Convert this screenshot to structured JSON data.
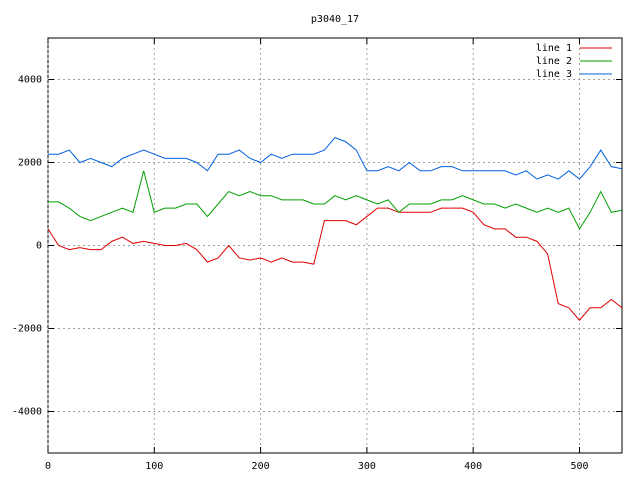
{
  "chart_data": {
    "type": "line",
    "title": "p3040_17",
    "x": [
      0,
      10,
      20,
      30,
      40,
      50,
      60,
      70,
      80,
      90,
      100,
      110,
      120,
      130,
      140,
      150,
      160,
      170,
      180,
      190,
      200,
      210,
      220,
      230,
      240,
      250,
      260,
      270,
      280,
      290,
      300,
      310,
      320,
      330,
      340,
      350,
      360,
      370,
      380,
      390,
      400,
      410,
      420,
      430,
      440,
      450,
      460,
      470,
      480,
      490,
      500,
      510,
      520,
      530,
      540
    ],
    "series": [
      {
        "name": "line 1",
        "color": "#e00000",
        "values": [
          400,
          0,
          -100,
          -50,
          -100,
          -100,
          100,
          200,
          50,
          100,
          50,
          0,
          0,
          50,
          -100,
          -400,
          -300,
          0,
          -300,
          -350,
          -300,
          -400,
          -300,
          -400,
          -400,
          -450,
          600,
          600,
          600,
          500,
          700,
          900,
          900,
          800,
          800,
          800,
          800,
          900,
          900,
          900,
          800,
          500,
          400,
          400,
          200,
          200,
          100,
          -200,
          -1400,
          -1500,
          -1800,
          -1500,
          -1500,
          -1300,
          -1500
        ]
      },
      {
        "name": "line 2",
        "color": "#00a000",
        "values": [
          1050,
          1050,
          900,
          700,
          600,
          700,
          800,
          900,
          800,
          1800,
          800,
          900,
          900,
          1000,
          1000,
          700,
          1000,
          1300,
          1200,
          1300,
          1200,
          1200,
          1100,
          1100,
          1100,
          1000,
          1000,
          1200,
          1100,
          1200,
          1100,
          1000,
          1100,
          800,
          1000,
          1000,
          1000,
          1100,
          1100,
          1200,
          1100,
          1000,
          1000,
          900,
          1000,
          900,
          800,
          900,
          800,
          900,
          400,
          800,
          1300,
          800,
          850
        ]
      },
      {
        "name": "line 3",
        "color": "#0060e0",
        "values": [
          2200,
          2200,
          2300,
          2000,
          2100,
          2000,
          1900,
          2100,
          2200,
          2300,
          2200,
          2100,
          2100,
          2100,
          2000,
          1800,
          2200,
          2200,
          2300,
          2100,
          2000,
          2200,
          2100,
          2200,
          2200,
          2200,
          2300,
          2600,
          2500,
          2300,
          1800,
          1800,
          1900,
          1800,
          2000,
          1800,
          1800,
          1900,
          1900,
          1800,
          1800,
          1800,
          1800,
          1800,
          1700,
          1800,
          1600,
          1700,
          1600,
          1800,
          1600,
          1900,
          2300,
          1900,
          1850
        ]
      }
    ],
    "xlim": [
      0,
      540
    ],
    "xticks": [
      0,
      100,
      200,
      300,
      400,
      500
    ],
    "ylim": [
      -5000,
      5000
    ],
    "yticks": [
      -4000,
      -2000,
      0,
      2000,
      4000
    ],
    "grid": true,
    "legend": "top-right"
  }
}
